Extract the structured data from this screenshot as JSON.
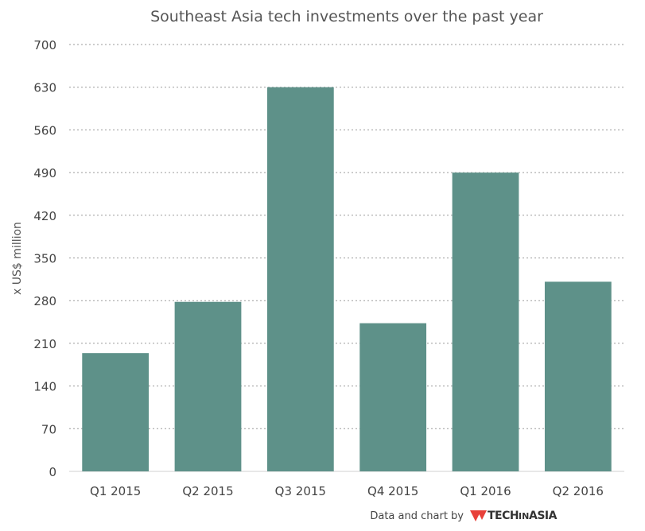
{
  "chart_data": {
    "type": "bar",
    "title": "Southeast Asia tech investments over the past year",
    "ylabel": "x US$ million",
    "xlabel": "",
    "categories": [
      "Q1 2015",
      "Q2 2015",
      "Q3 2015",
      "Q4 2015",
      "Q1 2016",
      "Q2 2016"
    ],
    "values": [
      194,
      278,
      630,
      243,
      490,
      311
    ],
    "ylim": [
      0,
      700
    ],
    "yticks": [
      "0",
      "70",
      "140",
      "210",
      "280",
      "350",
      "420",
      "490",
      "560",
      "630",
      "700"
    ],
    "grid": true,
    "bar_color": "#5e9189"
  },
  "credit": {
    "text": "Data and chart by",
    "brand_tech": "TECH",
    "brand_in": "IN",
    "brand_asia": "ASIA",
    "brand_color": "#e8413a"
  }
}
